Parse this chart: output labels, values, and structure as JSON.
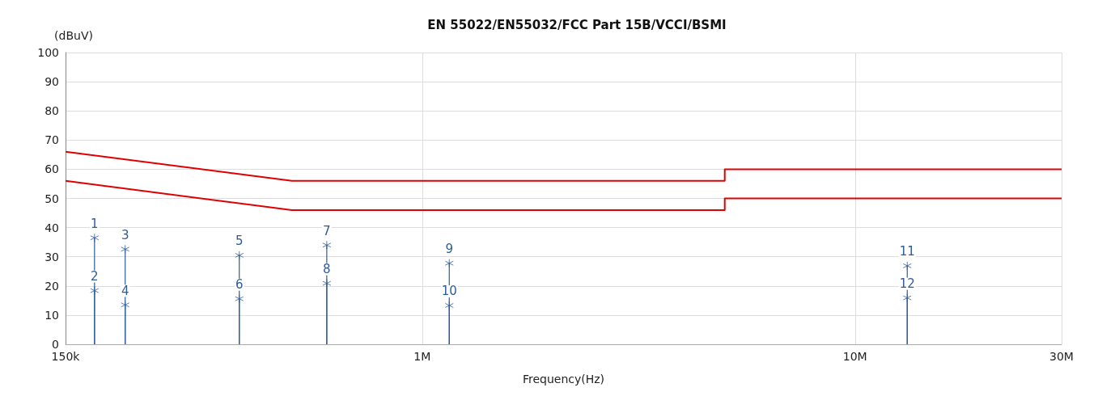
{
  "chart_data": {
    "type": "line",
    "title": "EN 55022/EN55032/FCC Part 15B/VCCI/BSMI",
    "xlabel": "Frequency(Hz)",
    "ylabel": "(dBuV)",
    "log": "x",
    "grid": true,
    "xlim": [
      150000,
      30000000
    ],
    "xticks": [
      {
        "value": 150000,
        "label": "150k"
      },
      {
        "value": 1000000,
        "label": "1M"
      },
      {
        "value": 10000000,
        "label": "10M"
      },
      {
        "value": 30000000,
        "label": "30M"
      }
    ],
    "ylim": [
      0,
      100
    ],
    "yticks": [
      0,
      10,
      20,
      30,
      40,
      50,
      60,
      70,
      80,
      90,
      100
    ],
    "series": [
      {
        "color": "#e00000",
        "x": [
          150000,
          500000,
          5000000,
          5000000,
          30000000
        ],
        "values": [
          66,
          56,
          56,
          60,
          60
        ]
      },
      {
        "color": "#e00000",
        "x": [
          150000,
          500000,
          5000000,
          5000000,
          30000000
        ],
        "values": [
          56,
          46,
          46,
          50,
          50
        ]
      },
      {
        "type": "lollipop",
        "color": "#2e5c9a",
        "marker": "cross",
        "x": [
          175000,
          175000,
          206000,
          206000,
          378000,
          378000,
          602000,
          602000,
          1155000,
          1155000,
          13200000,
          13200000
        ],
        "values": [
          36.5,
          18.4,
          32.6,
          13.5,
          30.5,
          15.6,
          34,
          20.9,
          27.8,
          13.3,
          26.9,
          15.9
        ]
      }
    ],
    "annotations": [
      {
        "text": "1",
        "x": 175000,
        "y": 36.5
      },
      {
        "text": "2",
        "x": 175000,
        "y": 18.4
      },
      {
        "text": "3",
        "x": 206000,
        "y": 32.6
      },
      {
        "text": "4",
        "x": 206000,
        "y": 13.5
      },
      {
        "text": "5",
        "x": 378000,
        "y": 30.5
      },
      {
        "text": "6",
        "x": 378000,
        "y": 15.6
      },
      {
        "text": "7",
        "x": 602000,
        "y": 34
      },
      {
        "text": "8",
        "x": 602000,
        "y": 20.9
      },
      {
        "text": "9",
        "x": 1155000,
        "y": 27.8
      },
      {
        "text": "10",
        "x": 1155000,
        "y": 13.3
      },
      {
        "text": "11",
        "x": 13200000,
        "y": 26.9
      },
      {
        "text": "12",
        "x": 13200000,
        "y": 15.9
      }
    ]
  }
}
